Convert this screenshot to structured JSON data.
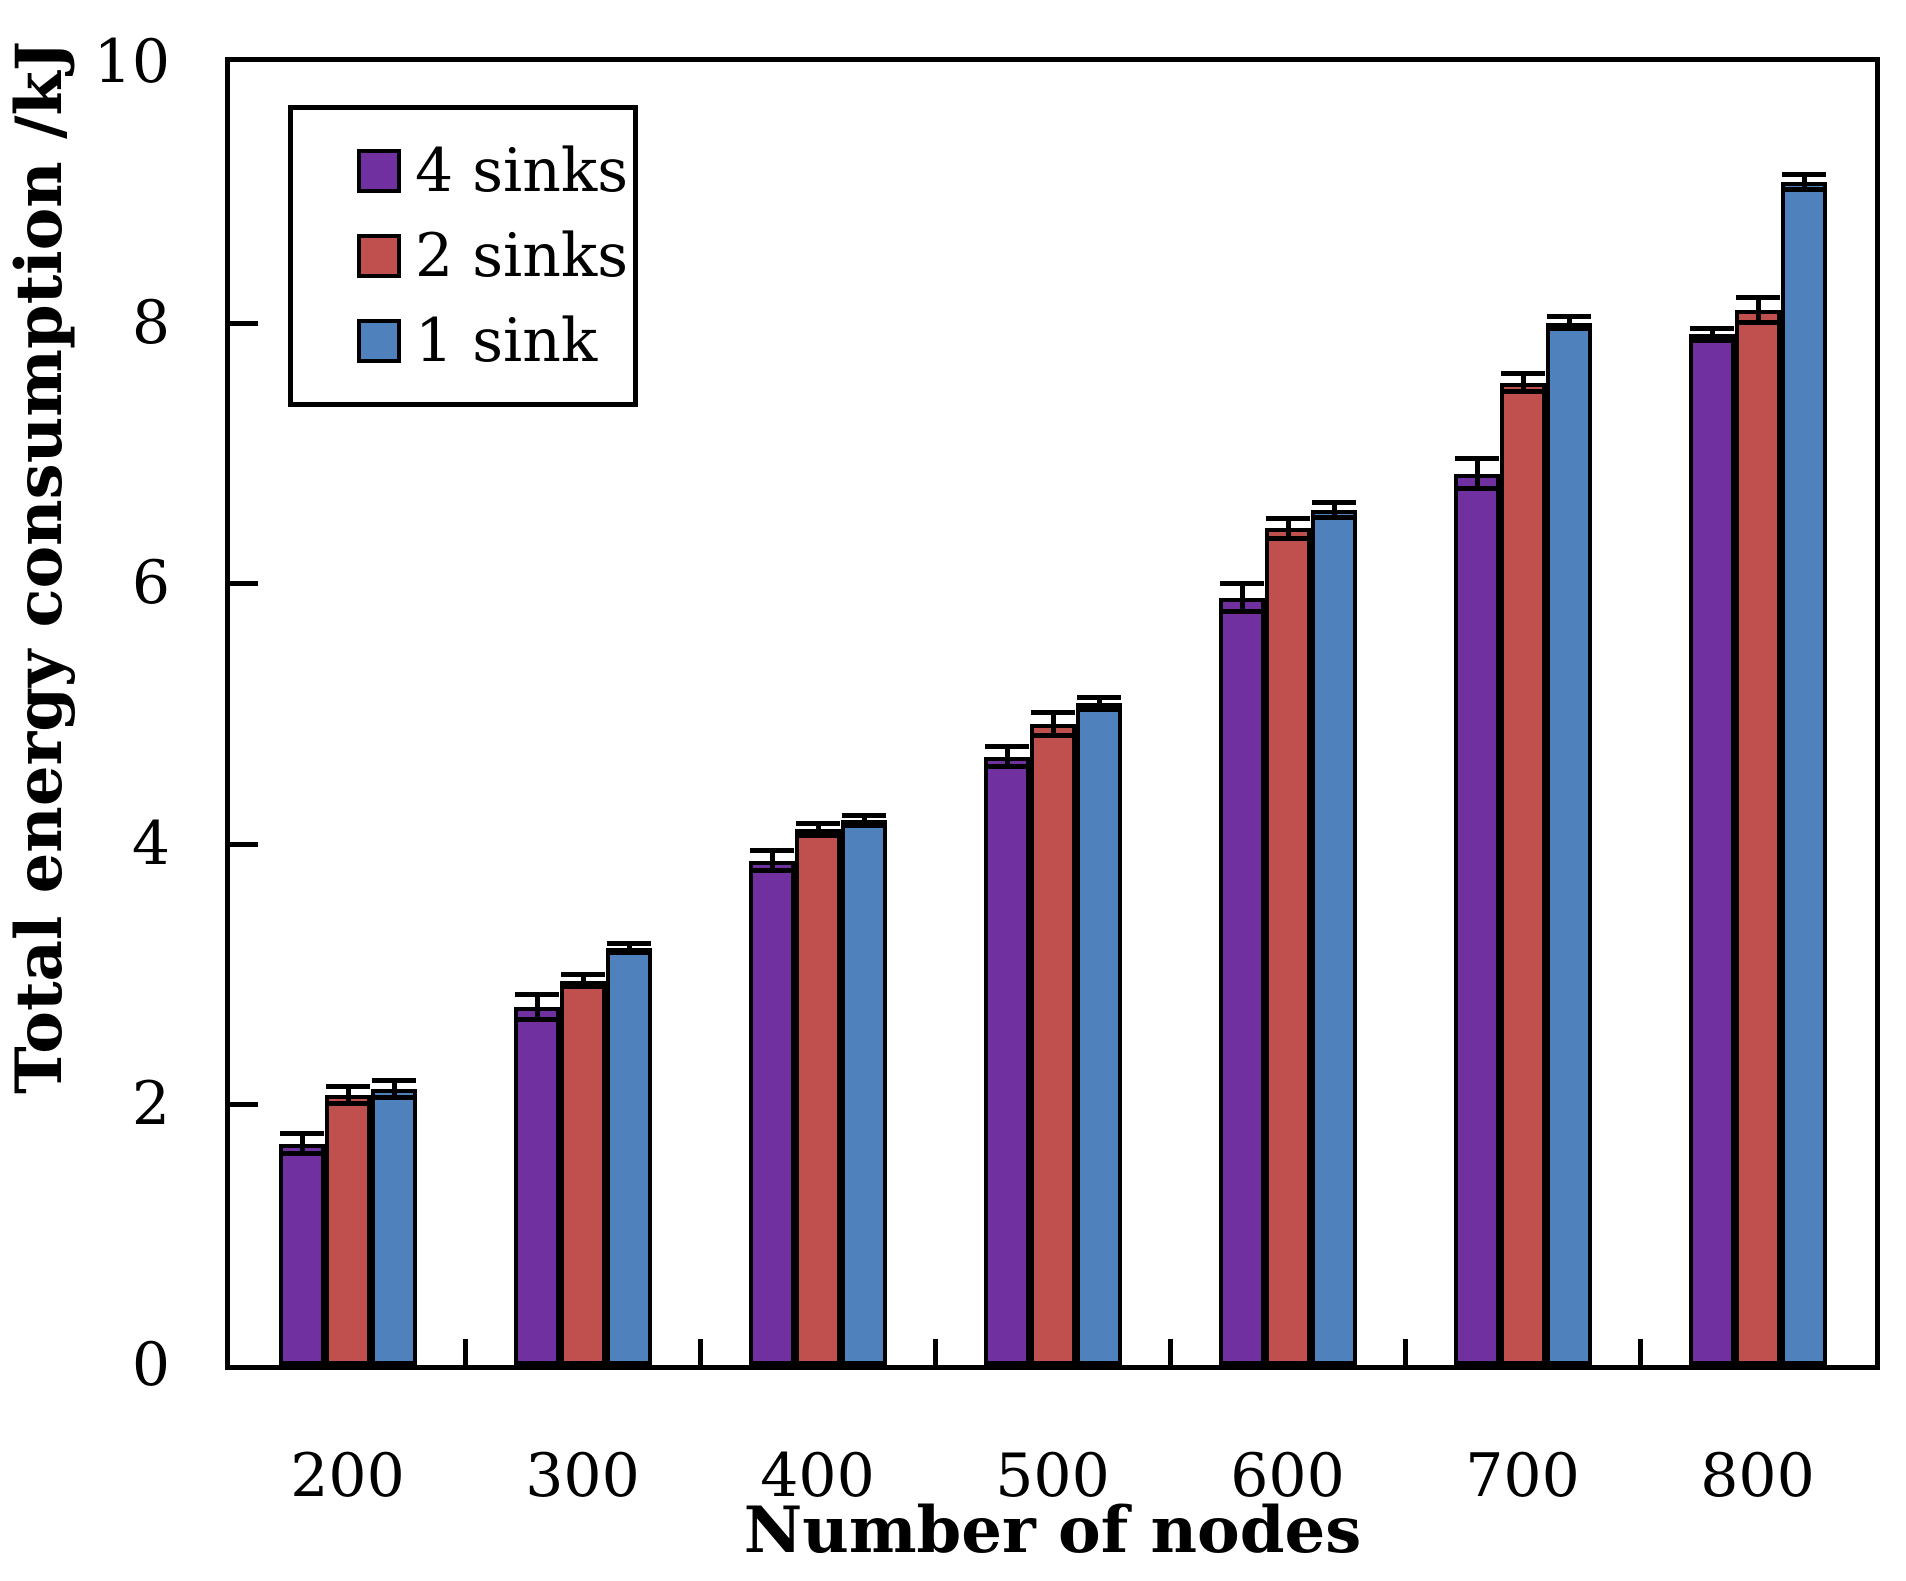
{
  "chart_data": {
    "type": "bar",
    "title": "",
    "xlabel": "Number of nodes",
    "ylabel": "Total energy consumption /kJ",
    "categories": [
      "200",
      "300",
      "400",
      "500",
      "600",
      "700",
      "800"
    ],
    "series": [
      {
        "name": "4 sinks",
        "color": "#7030A0",
        "values": [
          1.7,
          2.75,
          3.87,
          4.67,
          5.89,
          6.84,
          7.91
        ],
        "errors": [
          0.08,
          0.1,
          0.08,
          0.08,
          0.11,
          0.12,
          0.05
        ]
      },
      {
        "name": "2 sinks",
        "color": "#C0504D",
        "values": [
          2.07,
          2.95,
          4.11,
          4.92,
          6.42,
          7.54,
          8.1
        ],
        "errors": [
          0.07,
          0.05,
          0.05,
          0.09,
          0.08,
          0.07,
          0.1
        ]
      },
      {
        "name": "1 sink",
        "color": "#4F81BD",
        "values": [
          2.12,
          3.2,
          4.18,
          5.08,
          6.56,
          8.0,
          9.08
        ],
        "errors": [
          0.07,
          0.04,
          0.04,
          0.05,
          0.06,
          0.05,
          0.06
        ]
      }
    ],
    "ylim": [
      0,
      10
    ],
    "yticks": [
      0,
      2,
      4,
      6,
      8,
      10
    ],
    "grid": false,
    "error_bars": true,
    "legend_position": "top-left",
    "axis_color": "#000000",
    "background_color": "#FFFFFF"
  }
}
